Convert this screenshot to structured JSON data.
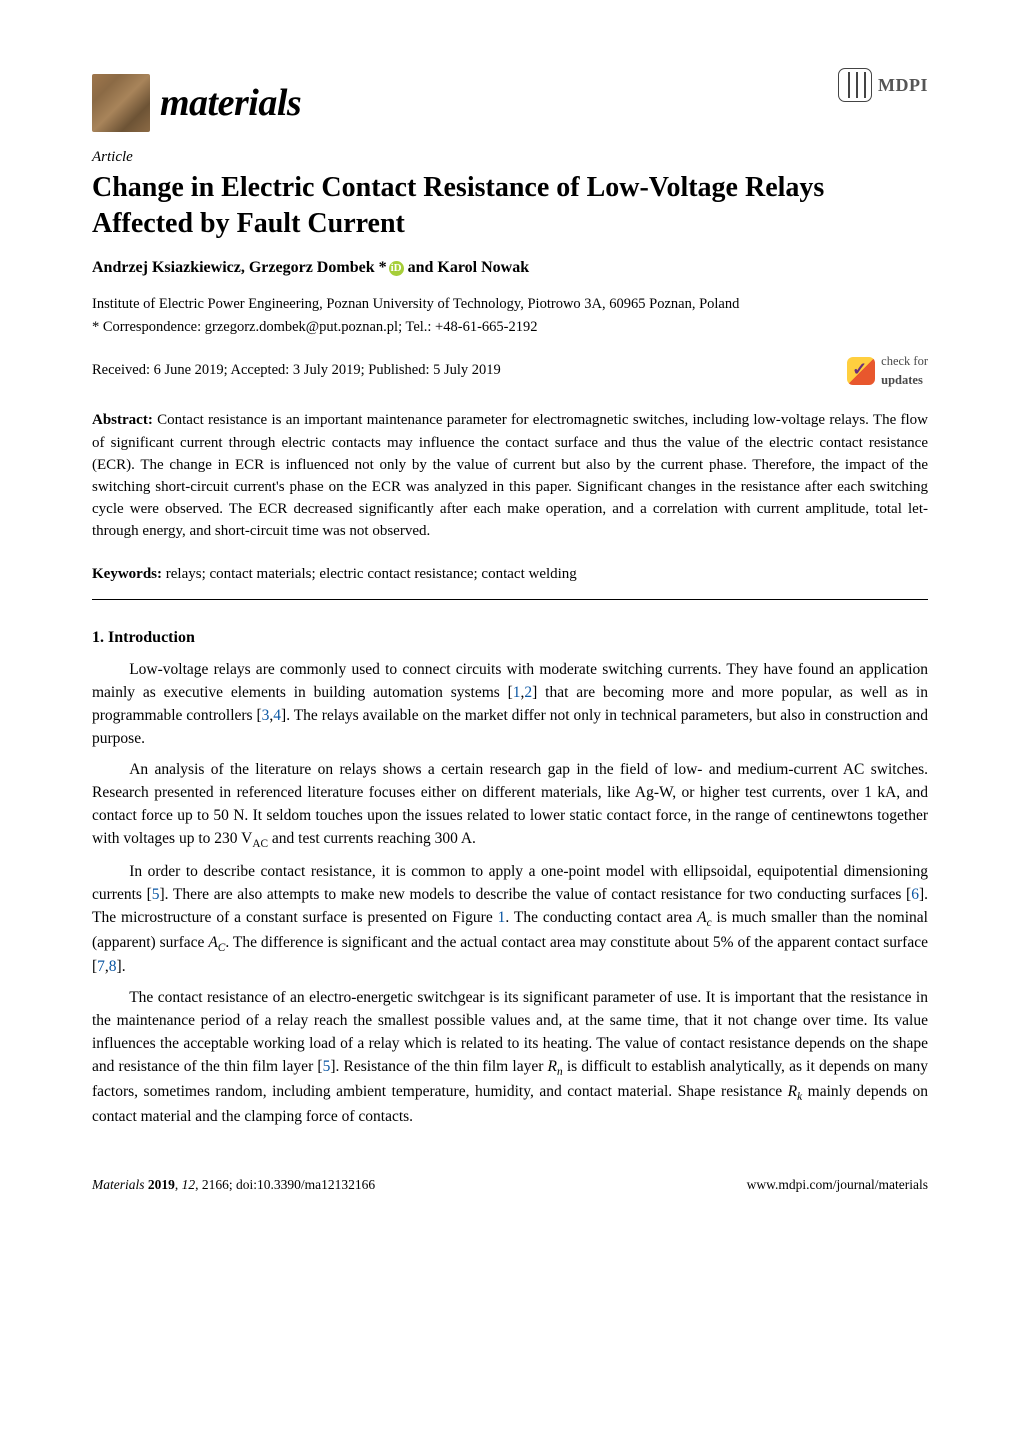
{
  "journal": {
    "name": "materials",
    "publisher_mark": "MDPI"
  },
  "article_type": "Article",
  "title": "Change in Electric Contact Resistance of Low-Voltage Relays Affected by Fault Current",
  "authors_html": "Andrzej Ksiazkiewicz, Grzegorz Dombek * and Karol Nowak",
  "orcid_symbol": "iD",
  "affiliation": "Institute of Electric Power Engineering, Poznan University of Technology, Piotrowo 3A, 60965 Poznan, Poland",
  "correspondence": "* Correspondence: grzegorz.dombek@put.poznan.pl; Tel.: +48-61-665-2192",
  "dates": "Received: 6 June 2019; Accepted: 3 July 2019; Published: 5 July 2019",
  "updates_badge_line1": "check for",
  "updates_badge_line2": "updates",
  "abstract_label": "Abstract:",
  "abstract": "Contact resistance is an important maintenance parameter for electromagnetic switches, including low-voltage relays. The flow of significant current through electric contacts may influence the contact surface and thus the value of the electric contact resistance (ECR). The change in ECR is influenced not only by the value of current but also by the current phase. Therefore, the impact of the switching short-circuit current's phase on the ECR was analyzed in this paper. Significant changes in the resistance after each switching cycle were observed. The ECR decreased significantly after each make operation, and a correlation with current amplitude, total let-through energy, and short-circuit time was not observed.",
  "keywords_label": "Keywords:",
  "keywords": "relays; contact materials; electric contact resistance; contact welding",
  "section1": {
    "heading": "1. Introduction",
    "para1": "Low-voltage relays are commonly used to connect circuits with moderate switching currents. They have found an application mainly as executive elements in building automation systems [1,2] that are becoming more and more popular, as well as in programmable controllers [3,4]. The relays available on the market differ not only in technical parameters, but also in construction and purpose.",
    "para2": "An analysis of the literature on relays shows a certain research gap in the field of low- and medium-current AC switches. Research presented in referenced literature focuses either on different materials, like Ag-W, or higher test currents, over 1 kA, and contact force up to 50 N. It seldom touches upon the issues related to lower static contact force, in the range of centinewtons together with voltages up to 230 V",
    "para2_sub": "AC",
    "para2_tail": " and test currents reaching 300 A.",
    "para3_a": "In order to describe contact resistance, it is common to apply a one-point model with ellipsoidal, equipotential dimensioning currents [5]. There are also attempts to make new models to describe the value of contact resistance for two conducting surfaces [6]. The microstructure of a constant surface is presented on Figure 1. The conducting contact area ",
    "para3_ac": "A",
    "para3_ac_sub": "c",
    "para3_b": " is much smaller than the nominal (apparent) surface ",
    "para3_AC": "A",
    "para3_AC_sub": "C",
    "para3_c": ". The difference is significant and the actual contact area may constitute about 5% of the apparent contact surface [7,8].",
    "para4_a": "The contact resistance of an electro-energetic switchgear is its significant parameter of use. It is important that the resistance in the maintenance period of a relay reach the smallest possible values and, at the same time, that it not change over time. Its value influences the acceptable working load of a relay which is related to its heating. The value of contact resistance depends on the shape and resistance of the thin film layer [5]. Resistance of the thin film layer ",
    "para4_rn": "R",
    "para4_rn_sub": "n",
    "para4_b": " is difficult to establish analytically, as it depends on many factors, sometimes random, including ambient temperature, humidity, and contact material. Shape resistance ",
    "para4_rk": "R",
    "para4_rk_sub": "k",
    "para4_c": " mainly depends on contact material and the clamping force of contacts."
  },
  "footer": {
    "left": "Materials 2019, 12, 2166; doi:10.3390/ma12132166",
    "right": "www.mdpi.com/journal/materials"
  },
  "colors": {
    "link": "#0a56a3",
    "logo_grad_a": "#9e764c",
    "orcid_bg": "#a6ce39"
  }
}
